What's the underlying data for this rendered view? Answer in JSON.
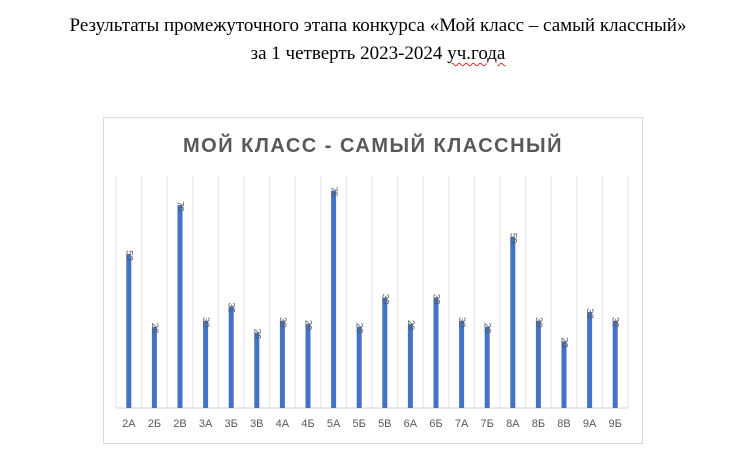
{
  "document": {
    "title_line1": "Результаты промежуточного этапа конкурса «Мой класс – самый классный»",
    "title_line2_prefix": "за 1 четверть 2023-2024 ",
    "title_line2_tail": "уч.года"
  },
  "chart_data": {
    "type": "bar",
    "title": "МОЙ КЛАСС - САМЫЙ КЛАССНЫЙ",
    "categories": [
      "2А",
      "2Б",
      "2В",
      "3А",
      "3Б",
      "3В",
      "4А",
      "4Б",
      "5А",
      "5Б",
      "5В",
      "6А",
      "6Б",
      "7А",
      "7Б",
      "8А",
      "8Б",
      "8В",
      "9А",
      "9Б"
    ],
    "values": [
      53,
      28,
      70,
      30,
      35,
      26,
      30,
      29,
      75,
      28,
      38,
      29,
      38,
      30,
      28,
      59,
      30,
      23,
      33,
      30
    ],
    "ylim": [
      0,
      80
    ],
    "grid": "vertical",
    "legend": "none",
    "colors": {
      "bar": "#4472C4",
      "grid": "#e3e3e3",
      "axis": "#d0d0d0",
      "text": "#595959",
      "title": "#595959"
    }
  }
}
